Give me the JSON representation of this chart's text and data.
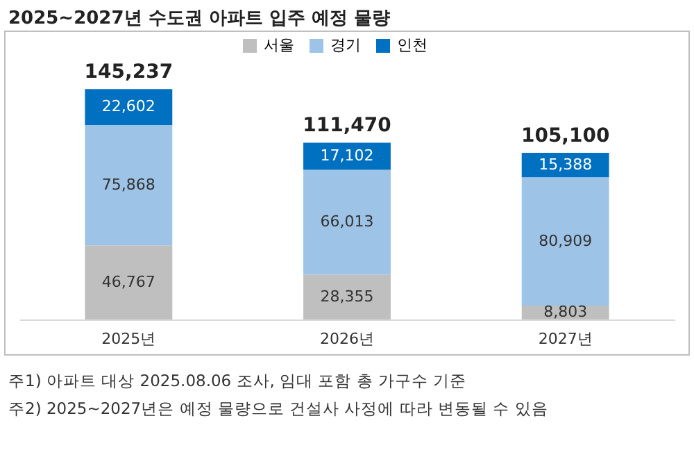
{
  "chart_data": {
    "type": "bar",
    "title": "2025~2027년 수도권 아파트 입주 예정 물량",
    "categories": [
      "2025년",
      "2026년",
      "2027년"
    ],
    "stacked": true,
    "legend": "top",
    "totals": [
      "145,237",
      "111,470",
      "105,100"
    ],
    "series": [
      {
        "name": "서울",
        "color": "#bfbfbf",
        "values": [
          46767,
          28355,
          8803
        ],
        "value_labels": [
          "46,767",
          "28,355",
          "8,803"
        ]
      },
      {
        "name": "경기",
        "color": "#9dc3e6",
        "values": [
          75868,
          66013,
          80909
        ],
        "value_labels": [
          "75,868",
          "66,013",
          "80,909"
        ]
      },
      {
        "name": "인천",
        "color": "#0070c0",
        "values": [
          22602,
          17102,
          15388
        ],
        "value_labels": [
          "22,602",
          "17,102",
          "15,388"
        ]
      }
    ],
    "annotations": [
      "주1) 아파트 대상 2025.08.06 조사, 임대 포함 총 가구수 기준",
      "주2) 2025~2027년은 예정 물량으로 건설사 사정에 따라 변동될 수 있음"
    ]
  }
}
